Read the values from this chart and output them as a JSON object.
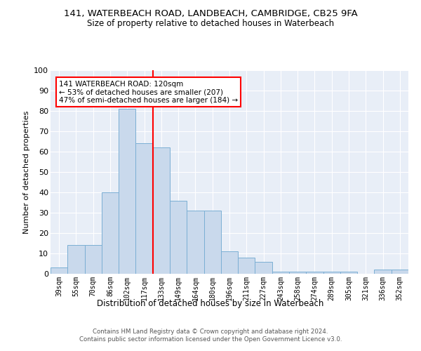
{
  "title_line1": "141, WATERBEACH ROAD, LANDBEACH, CAMBRIDGE, CB25 9FA",
  "title_line2": "Size of property relative to detached houses in Waterbeach",
  "xlabel": "Distribution of detached houses by size in Waterbeach",
  "ylabel": "Number of detached properties",
  "categories": [
    "39sqm",
    "55sqm",
    "70sqm",
    "86sqm",
    "102sqm",
    "117sqm",
    "133sqm",
    "149sqm",
    "164sqm",
    "180sqm",
    "196sqm",
    "211sqm",
    "227sqm",
    "243sqm",
    "258sqm",
    "274sqm",
    "289sqm",
    "305sqm",
    "321sqm",
    "336sqm",
    "352sqm"
  ],
  "values": [
    3,
    14,
    14,
    40,
    81,
    64,
    62,
    36,
    31,
    31,
    11,
    8,
    6,
    1,
    1,
    1,
    1,
    1,
    0,
    2,
    2
  ],
  "bar_color": "#c9d9ec",
  "bar_edge_color": "#7bafd4",
  "vline_x": 5.5,
  "vline_color": "red",
  "annotation_text": "141 WATERBEACH ROAD: 120sqm\n← 53% of detached houses are smaller (207)\n47% of semi-detached houses are larger (184) →",
  "annotation_box_color": "white",
  "annotation_box_edge": "red",
  "ylim": [
    0,
    100
  ],
  "yticks": [
    0,
    10,
    20,
    30,
    40,
    50,
    60,
    70,
    80,
    90,
    100
  ],
  "background_color": "#e8eef7",
  "footer": "Contains HM Land Registry data © Crown copyright and database right 2024.\nContains public sector information licensed under the Open Government Licence v3.0."
}
